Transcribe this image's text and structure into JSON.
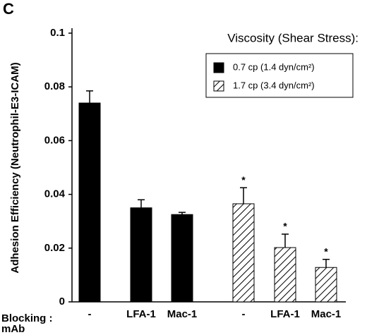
{
  "chart_data": {
    "type": "bar",
    "panel_label": "C",
    "ylabel": "Adhesion Efficiency (Neutrophil-E3-ICAM)",
    "xlabel": [
      "Blocking :",
      "mAb"
    ],
    "categories": [
      "-",
      "LFA-1",
      "Mac-1"
    ],
    "legend_title": "Viscosity (Shear Stress):",
    "series": [
      {
        "name": "0.7 cp (1.4 dyn/cm²)",
        "color": "#000000",
        "fill": "solid",
        "values": [
          0.074,
          0.035,
          0.0325
        ],
        "errors": [
          0.0045,
          0.003,
          0.0008
        ]
      },
      {
        "name": "1.7 cp (3.4 dyn/cm²)",
        "color": "#000000",
        "fill": "hatch",
        "values": [
          0.0365,
          0.0202,
          0.0128
        ],
        "errors": [
          0.006,
          0.005,
          0.003
        ],
        "markers": [
          "*",
          "*",
          "*"
        ]
      }
    ],
    "ylim": [
      0,
      0.1
    ],
    "yticks": [
      0,
      0.02,
      0.04,
      0.06,
      0.08,
      0.1
    ]
  }
}
